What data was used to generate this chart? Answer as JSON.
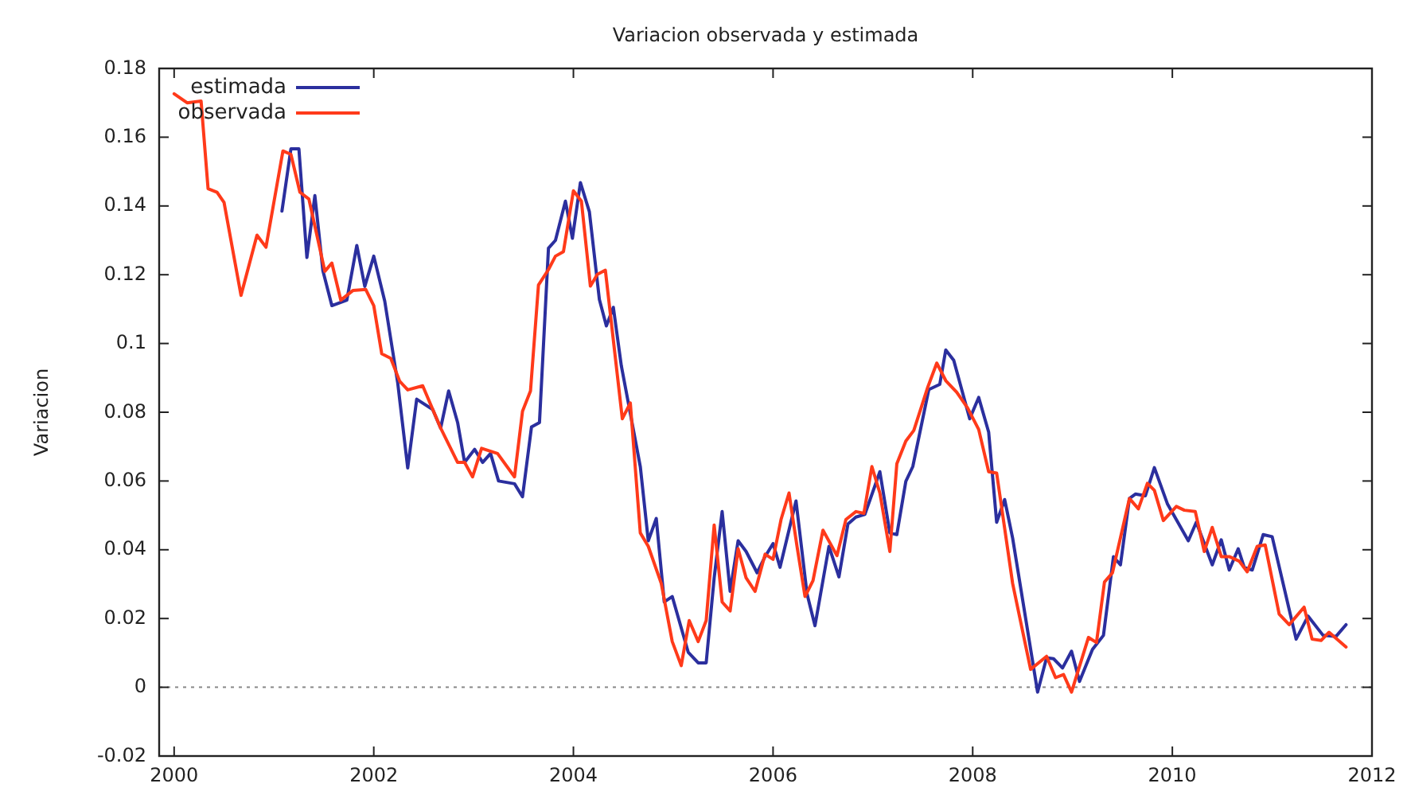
{
  "chart_data": {
    "type": "line",
    "title": "Variacion observada y estimada",
    "ylabel": "Variacion",
    "xlim": [
      1999.85,
      2012
    ],
    "xticks": [
      2000,
      2002,
      2004,
      2006,
      2008,
      2010,
      2012
    ],
    "ylim": [
      -0.02,
      0.18
    ],
    "yticks": [
      -0.02,
      0,
      0.02,
      0.04,
      0.06,
      0.08,
      0.1,
      0.12,
      0.14,
      0.16,
      0.18
    ],
    "grid": false,
    "legend": "top left",
    "marker": "none",
    "line_style": "solid",
    "ref_lines": [
      {
        "axis": "y",
        "value": 0,
        "color": "#888888",
        "line_style": "dotted"
      }
    ],
    "series": [
      {
        "name": "estimada",
        "color": "#2b2f9e",
        "x": [
          2001.08,
          2001.17,
          2001.25,
          2001.33,
          2001.41,
          2001.49,
          2001.58,
          2001.73,
          2001.83,
          2001.91,
          2002.0,
          2002.11,
          2002.24,
          2002.34,
          2002.43,
          2002.59,
          2002.67,
          2002.75,
          2002.84,
          2002.91,
          2003.01,
          2003.09,
          2003.17,
          2003.25,
          2003.41,
          2003.49,
          2003.58,
          2003.66,
          2003.75,
          2003.82,
          2003.92,
          2003.99,
          2004.07,
          2004.16,
          2004.26,
          2004.33,
          2004.4,
          2004.48,
          2004.56,
          2004.67,
          2004.75,
          2004.83,
          2004.91,
          2004.99,
          2005.15,
          2005.25,
          2005.33,
          2005.41,
          2005.49,
          2005.57,
          2005.65,
          2005.73,
          2005.84,
          2005.92,
          2006.0,
          2006.07,
          2006.23,
          2006.34,
          2006.42,
          2006.56,
          2006.66,
          2006.75,
          2006.83,
          2006.92,
          2007.07,
          2007.17,
          2007.24,
          2007.33,
          2007.4,
          2007.56,
          2007.67,
          2007.73,
          2007.81,
          2007.97,
          2008.06,
          2008.16,
          2008.24,
          2008.32,
          2008.4,
          2008.65,
          2008.74,
          2008.81,
          2008.9,
          2008.99,
          2009.07,
          2009.2,
          2009.31,
          2009.41,
          2009.48,
          2009.57,
          2009.63,
          2009.73,
          2009.82,
          2009.95,
          2010.16,
          2010.24,
          2010.4,
          2010.49,
          2010.57,
          2010.66,
          2010.72,
          2010.8,
          2010.91,
          2011.0,
          2011.24,
          2011.36,
          2011.51,
          2011.64,
          2011.74
        ],
        "values": [
          0.1385,
          0.1566,
          0.1566,
          0.125,
          0.143,
          0.1212,
          0.111,
          0.1126,
          0.1285,
          0.1166,
          0.1254,
          0.1123,
          0.0885,
          0.0638,
          0.0838,
          0.0808,
          0.0754,
          0.0862,
          0.077,
          0.0654,
          0.0692,
          0.0654,
          0.068,
          0.06,
          0.0592,
          0.0554,
          0.0757,
          0.077,
          0.1277,
          0.13,
          0.1414,
          0.1306,
          0.1468,
          0.1383,
          0.1128,
          0.1051,
          0.1105,
          0.0935,
          0.0812,
          0.0642,
          0.0426,
          0.0491,
          0.0248,
          0.0264,
          0.0102,
          0.0071,
          0.0071,
          0.0318,
          0.0511,
          0.0279,
          0.0426,
          0.0395,
          0.0333,
          0.038,
          0.0418,
          0.0349,
          0.0542,
          0.0272,
          0.0179,
          0.041,
          0.0321,
          0.0475,
          0.0495,
          0.0503,
          0.0627,
          0.0449,
          0.0444,
          0.0599,
          0.0642,
          0.0866,
          0.0881,
          0.0981,
          0.0951,
          0.0781,
          0.0843,
          0.0742,
          0.048,
          0.0546,
          0.0434,
          -0.0014,
          0.0086,
          0.0083,
          0.0056,
          0.0105,
          0.0017,
          0.011,
          0.0151,
          0.038,
          0.0356,
          0.0549,
          0.0562,
          0.0557,
          0.0639,
          0.0534,
          0.0426,
          0.048,
          0.0356,
          0.0429,
          0.0341,
          0.0403,
          0.0349,
          0.0341,
          0.0444,
          0.0438,
          0.014,
          0.0207,
          0.0151,
          0.0148,
          0.0182
        ]
      },
      {
        "name": "observada",
        "color": "#ff3a1a",
        "x": [
          2000.0,
          2000.13,
          2000.27,
          2000.34,
          2000.43,
          2000.5,
          2000.67,
          2000.83,
          2000.92,
          2001.09,
          2001.17,
          2001.26,
          2001.35,
          2001.51,
          2001.58,
          2001.67,
          2001.79,
          2001.92,
          2002.0,
          2002.08,
          2002.17,
          2002.26,
          2002.34,
          2002.49,
          2002.67,
          2002.84,
          2002.91,
          2002.99,
          2003.08,
          2003.24,
          2003.41,
          2003.49,
          2003.57,
          2003.65,
          2003.75,
          2003.82,
          2003.9,
          2004.0,
          2004.08,
          2004.17,
          2004.24,
          2004.32,
          2004.49,
          2004.57,
          2004.67,
          2004.75,
          2004.88,
          2004.99,
          2005.08,
          2005.16,
          2005.25,
          2005.33,
          2005.41,
          2005.49,
          2005.57,
          2005.65,
          2005.73,
          2005.82,
          2005.92,
          2006.0,
          2006.08,
          2006.16,
          2006.24,
          2006.32,
          2006.4,
          2006.5,
          2006.64,
          2006.73,
          2006.83,
          2006.91,
          2006.99,
          2007.07,
          2007.17,
          2007.24,
          2007.33,
          2007.41,
          2007.55,
          2007.64,
          2007.73,
          2007.84,
          2007.95,
          2008.06,
          2008.16,
          2008.24,
          2008.4,
          2008.58,
          2008.74,
          2008.83,
          2008.91,
          2008.99,
          2009.16,
          2009.24,
          2009.32,
          2009.4,
          2009.57,
          2009.66,
          2009.75,
          2009.82,
          2009.91,
          2010.04,
          2010.12,
          2010.23,
          2010.32,
          2010.4,
          2010.49,
          2010.57,
          2010.67,
          2010.75,
          2010.85,
          2010.93,
          2011.07,
          2011.17,
          2011.32,
          2011.4,
          2011.49,
          2011.57,
          2011.74
        ],
        "values": [
          0.1726,
          0.17,
          0.1705,
          0.145,
          0.144,
          0.141,
          0.114,
          0.1315,
          0.128,
          0.156,
          0.155,
          0.144,
          0.142,
          0.121,
          0.1234,
          0.1126,
          0.1154,
          0.1157,
          0.111,
          0.097,
          0.0957,
          0.089,
          0.0865,
          0.0877,
          0.0754,
          0.0654,
          0.0654,
          0.0612,
          0.0695,
          0.068,
          0.0612,
          0.0803,
          0.0862,
          0.117,
          0.1215,
          0.1254,
          0.1267,
          0.1444,
          0.1414,
          0.1167,
          0.1201,
          0.1213,
          0.0781,
          0.0827,
          0.0449,
          0.041,
          0.0302,
          0.0133,
          0.0063,
          0.0194,
          0.0133,
          0.0194,
          0.0472,
          0.0248,
          0.0222,
          0.0403,
          0.0318,
          0.0279,
          0.0387,
          0.0372,
          0.0488,
          0.0565,
          0.041,
          0.0264,
          0.031,
          0.0457,
          0.0383,
          0.0488,
          0.0511,
          0.0506,
          0.0642,
          0.0565,
          0.0395,
          0.065,
          0.0716,
          0.0747,
          0.0873,
          0.0943,
          0.0892,
          0.0858,
          0.0812,
          0.075,
          0.0627,
          0.0623,
          0.0302,
          0.0052,
          0.009,
          0.0028,
          0.0037,
          -0.0014,
          0.0145,
          0.013,
          0.0306,
          0.0333,
          0.0549,
          0.0519,
          0.0593,
          0.0573,
          0.0485,
          0.0526,
          0.0515,
          0.0511,
          0.0395,
          0.0465,
          0.038,
          0.038,
          0.0367,
          0.0336,
          0.041,
          0.0414,
          0.0213,
          0.0182,
          0.0233,
          0.014,
          0.0136,
          0.016,
          0.0117
        ]
      }
    ]
  }
}
